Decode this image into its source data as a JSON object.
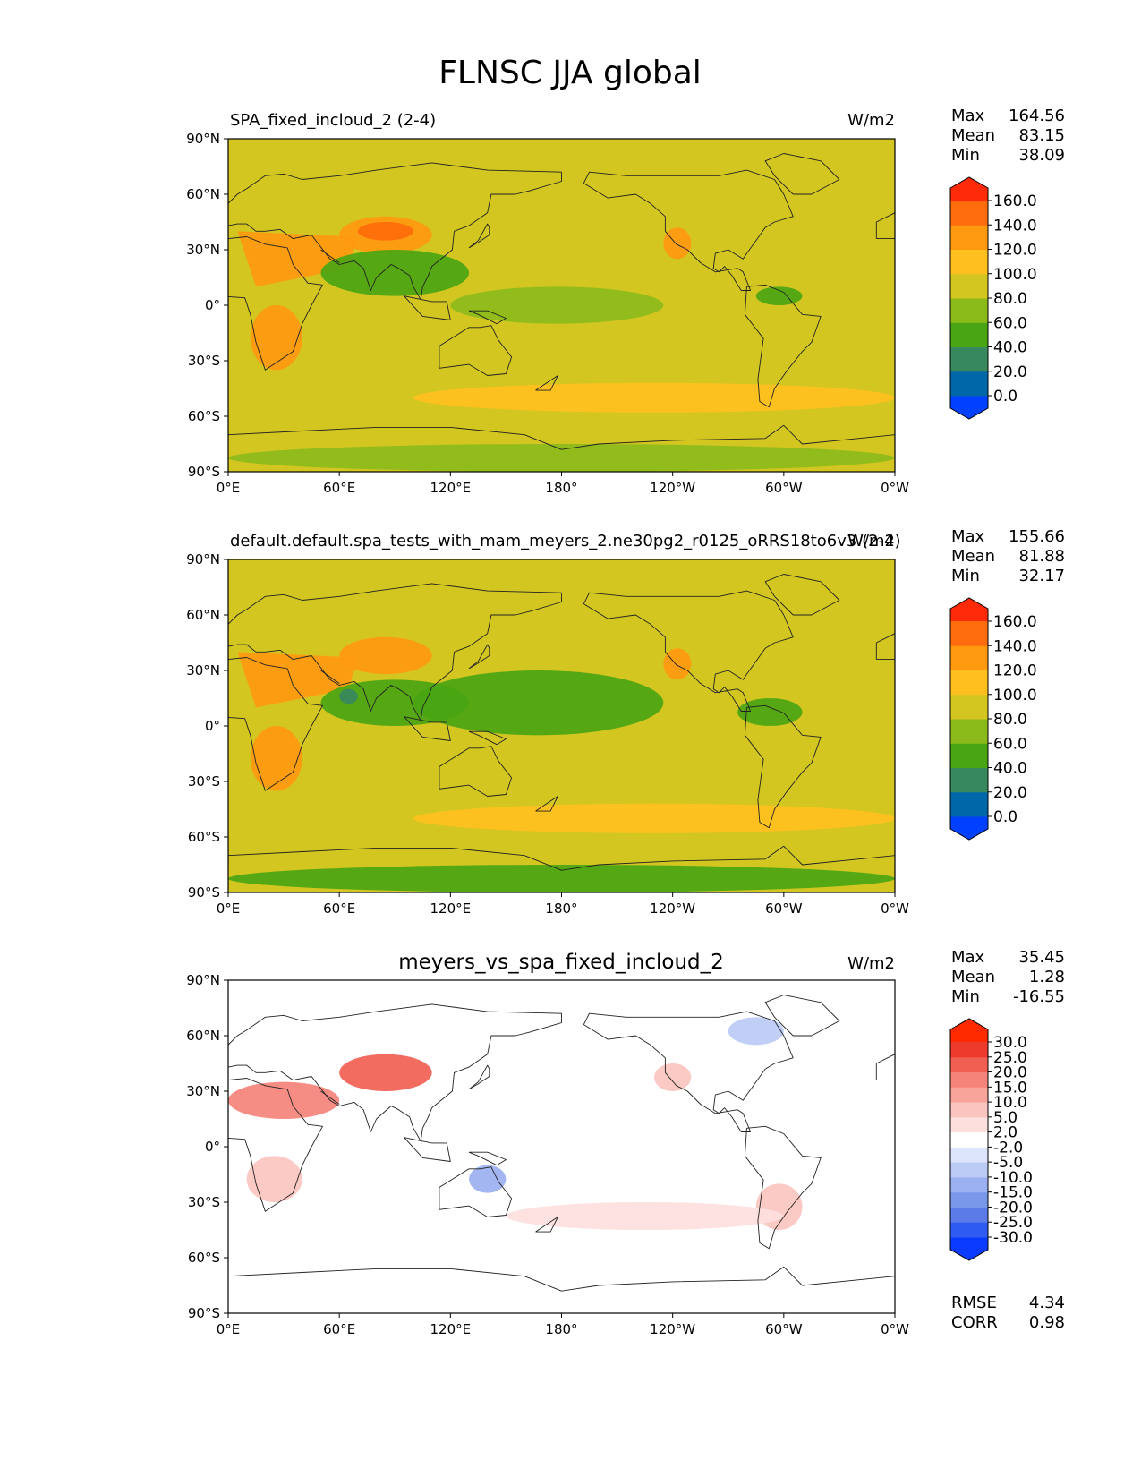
{
  "title": "FLNSC JJA global",
  "panels": [
    {
      "left_title": "SPA_fixed_incloud_2 (2-4)",
      "center_title": "",
      "units": "W/m2",
      "stats": [
        {
          "label": "Max",
          "value": "164.56"
        },
        {
          "label": "Mean",
          "value": "83.15"
        },
        {
          "label": "Min",
          "value": "38.09"
        }
      ],
      "colorbar": {
        "tick_labels": [
          "160.0",
          "140.0",
          "120.0",
          "100.0",
          "80.0",
          "60.0",
          "40.0",
          "20.0",
          "0.0"
        ],
        "colors": [
          "#0040ff",
          "#0068a8",
          "#38885e",
          "#4aa514",
          "#8bbb1b",
          "#d3c621",
          "#ffc01f",
          "#ff9910",
          "#ff6c0b",
          "#ff2a07"
        ]
      },
      "background": "#d3c621"
    },
    {
      "left_title": "default.default.spa_tests_with_mam_meyers_2.ne30pg2_r0125_oRRS18to6v3 (2-4)",
      "center_title": "",
      "units": "W/m2",
      "stats": [
        {
          "label": "Max",
          "value": "155.66"
        },
        {
          "label": "Mean",
          "value": "81.88"
        },
        {
          "label": "Min",
          "value": "32.17"
        }
      ],
      "colorbar": {
        "tick_labels": [
          "160.0",
          "140.0",
          "120.0",
          "100.0",
          "80.0",
          "60.0",
          "40.0",
          "20.0",
          "0.0"
        ],
        "colors": [
          "#0040ff",
          "#0068a8",
          "#38885e",
          "#4aa514",
          "#8bbb1b",
          "#d3c621",
          "#ffc01f",
          "#ff9910",
          "#ff6c0b",
          "#ff2a07"
        ]
      },
      "background": "#d3c621"
    },
    {
      "left_title": "",
      "center_title": "meyers_vs_spa_fixed_incloud_2",
      "units": "W/m2",
      "stats": [
        {
          "label": "Max",
          "value": "35.45"
        },
        {
          "label": "Mean",
          "value": "1.28"
        },
        {
          "label": "Min",
          "value": "-16.55"
        }
      ],
      "colorbar": {
        "tick_labels": [
          "30.0",
          "25.0",
          "20.0",
          "15.0",
          "10.0",
          "5.0",
          "2.0",
          "-2.0",
          "-5.0",
          "-10.0",
          "-15.0",
          "-20.0",
          "-25.0",
          "-30.0"
        ],
        "colors": [
          "#0a3bff",
          "#2e5cf3",
          "#5a7be8",
          "#7a98ea",
          "#9bb0f0",
          "#bccbf5",
          "#dce5fb",
          "#ffffff",
          "#fde0de",
          "#fbc5bf",
          "#f8a49b",
          "#f5837a",
          "#f15f52",
          "#ee3a2c",
          "#ff2a00"
        ]
      },
      "extra_stats": [
        {
          "label": "RMSE",
          "value": "4.34"
        },
        {
          "label": "CORR",
          "value": "0.98"
        }
      ],
      "background": "#ffffff"
    }
  ],
  "axes": {
    "y_ticks": [
      "90°N",
      "60°N",
      "30°N",
      "0°",
      "30°S",
      "60°S",
      "90°S"
    ],
    "x_ticks": [
      "0°E",
      "60°E",
      "120°E",
      "180°",
      "120°W",
      "60°W",
      "0°W"
    ]
  },
  "map_fields": {
    "panel_1": [
      {
        "lon": [
          5,
          70,
          65,
          15
        ],
        "lat": [
          40,
          37,
          20,
          10
        ],
        "color": "#ff9910"
      },
      {
        "lon": [
          60,
          110
        ],
        "lat": [
          48,
          28
        ],
        "color": "#ff9910"
      },
      {
        "lon": [
          12,
          40
        ],
        "lat": [
          0,
          -35
        ],
        "color": "#ff9910"
      },
      {
        "lon": [
          235,
          250
        ],
        "lat": [
          42,
          25
        ],
        "color": "#ff9910"
      },
      {
        "lon": [
          70,
          100
        ],
        "lat": [
          45,
          35
        ],
        "color": "#ff6c0b"
      },
      {
        "lon": [
          120,
          235
        ],
        "lat": [
          10,
          -10
        ],
        "color": "#8bbb1b"
      },
      {
        "lon": [
          50,
          130
        ],
        "lat": [
          30,
          5
        ],
        "color": "#4aa514"
      },
      {
        "lon": [
          285,
          310
        ],
        "lat": [
          10,
          0
        ],
        "color": "#4aa514"
      },
      {
        "lon": [
          0,
          360
        ],
        "lat": [
          -75,
          -90
        ],
        "color": "#8bbb1b"
      },
      {
        "lon": [
          100,
          360
        ],
        "lat": [
          -42,
          -58
        ],
        "color": "#ffc01f"
      }
    ],
    "panel_2": [
      {
        "lon": [
          5,
          70,
          65,
          15
        ],
        "lat": [
          40,
          37,
          20,
          10
        ],
        "color": "#ff9910"
      },
      {
        "lon": [
          60,
          110
        ],
        "lat": [
          48,
          28
        ],
        "color": "#ff9910"
      },
      {
        "lon": [
          12,
          40
        ],
        "lat": [
          0,
          -35
        ],
        "color": "#ff9910"
      },
      {
        "lon": [
          235,
          250
        ],
        "lat": [
          42,
          25
        ],
        "color": "#ff9910"
      },
      {
        "lon": [
          100,
          235
        ],
        "lat": [
          30,
          -5
        ],
        "color": "#4aa514"
      },
      {
        "lon": [
          50,
          130
        ],
        "lat": [
          25,
          0
        ],
        "color": "#4aa514"
      },
      {
        "lon": [
          275,
          310
        ],
        "lat": [
          15,
          0
        ],
        "color": "#4aa514"
      },
      {
        "lon": [
          0,
          360
        ],
        "lat": [
          -75,
          -90
        ],
        "color": "#4aa514"
      },
      {
        "lon": [
          100,
          360
        ],
        "lat": [
          -42,
          -58
        ],
        "color": "#ffc01f"
      },
      {
        "lon": [
          60,
          70
        ],
        "lat": [
          20,
          12
        ],
        "color": "#38885e"
      }
    ],
    "panel_3": [
      {
        "lon": [
          0,
          60
        ],
        "lat": [
          35,
          15
        ],
        "color": "#f5837a"
      },
      {
        "lon": [
          60,
          110
        ],
        "lat": [
          50,
          30
        ],
        "color": "#f15f52"
      },
      {
        "lon": [
          130,
          150
        ],
        "lat": [
          -10,
          -25
        ],
        "color": "#9bb0f0"
      },
      {
        "lon": [
          285,
          310
        ],
        "lat": [
          -20,
          -45
        ],
        "color": "#fbc5bf"
      },
      {
        "lon": [
          150,
          300
        ],
        "lat": [
          -30,
          -45
        ],
        "color": "#fde0de"
      },
      {
        "lon": [
          230,
          250
        ],
        "lat": [
          45,
          30
        ],
        "color": "#fbc5bf"
      },
      {
        "lon": [
          270,
          300
        ],
        "lat": [
          70,
          55
        ],
        "color": "#bccbf5"
      },
      {
        "lon": [
          10,
          40
        ],
        "lat": [
          -5,
          -30
        ],
        "color": "#fbc5bf"
      }
    ]
  }
}
